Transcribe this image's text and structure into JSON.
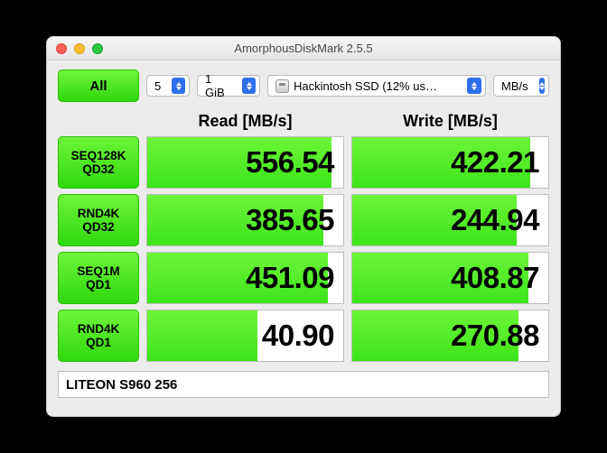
{
  "window": {
    "title": "AmorphousDiskMark 2.5.5"
  },
  "controls": {
    "all_label": "All",
    "runs": "5",
    "size": "1 GiB",
    "disk": "Hackintosh SSD (12% us…",
    "unit": "MB/s"
  },
  "headers": {
    "read": "Read [MB/s]",
    "write": "Write [MB/s]"
  },
  "rows": [
    {
      "label1": "SEQ128K",
      "label2": "QD32",
      "read": "556.54",
      "read_pct": 94,
      "write": "422.21",
      "write_pct": 91
    },
    {
      "label1": "RND4K",
      "label2": "QD32",
      "read": "385.65",
      "read_pct": 90,
      "write": "244.94",
      "write_pct": 84
    },
    {
      "label1": "SEQ1M",
      "label2": "QD1",
      "read": "451.09",
      "read_pct": 92,
      "write": "408.87",
      "write_pct": 90
    },
    {
      "label1": "RND4K",
      "label2": "QD1",
      "read": "40.90",
      "read_pct": 56,
      "write": "270.88",
      "write_pct": 85
    }
  ],
  "footer": {
    "device": "LITEON S960 256"
  },
  "colors": {
    "green_top": "#6ff53b",
    "green_bot": "#2fd80c",
    "accent_blue": "#2f6fec",
    "window_bg": "#ececec"
  }
}
